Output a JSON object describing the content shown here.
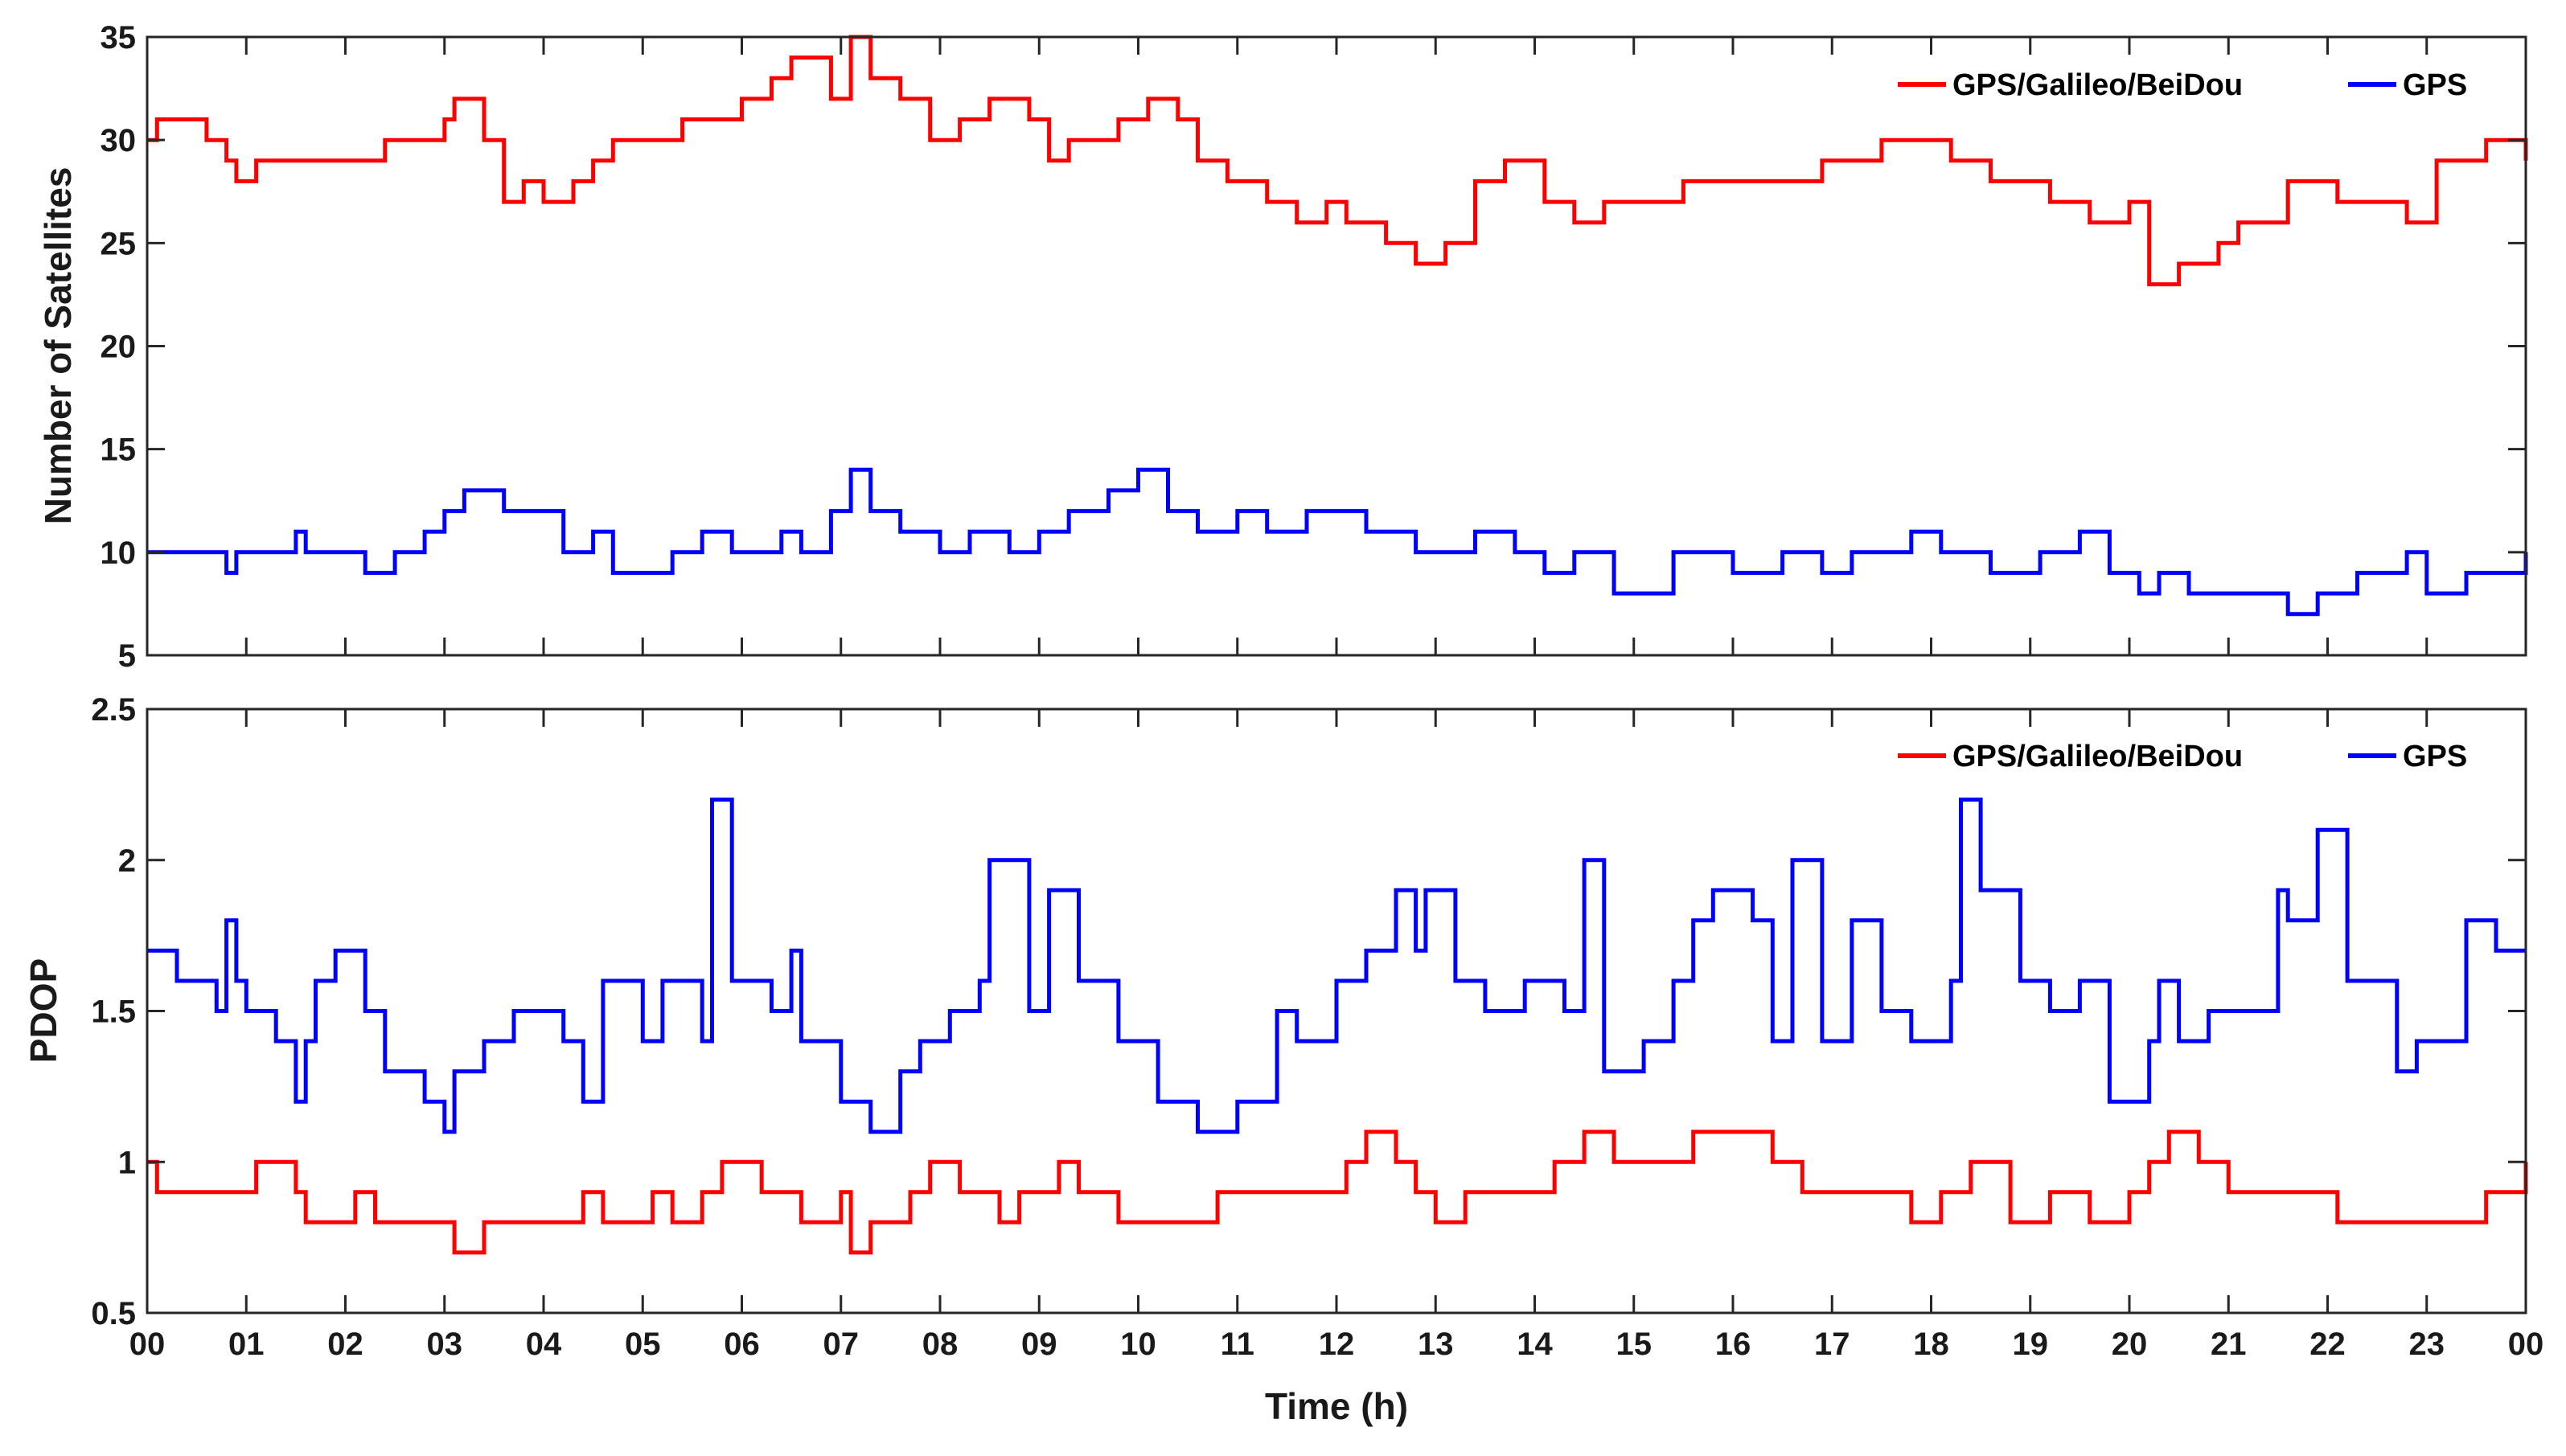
{
  "chart_data": [
    {
      "type": "line",
      "ylabel": "Number of Satellites",
      "xlabel": "",
      "xlim": [
        0,
        24
      ],
      "ylim": [
        5,
        35
      ],
      "yticks": [
        5,
        10,
        15,
        20,
        25,
        30,
        35
      ],
      "legend_position": "top-right",
      "series": [
        {
          "name": "GPS/Galileo/BeiDou",
          "color": "#ff0000",
          "x": [
            0,
            0.1,
            0.6,
            0.8,
            0.9,
            1.1,
            1.5,
            2.2,
            2.4,
            2.6,
            3.0,
            3.1,
            3.4,
            3.6,
            3.8,
            4.0,
            4.3,
            4.5,
            4.7,
            5.2,
            5.4,
            6.0,
            6.3,
            6.5,
            6.9,
            7.1,
            7.3,
            7.6,
            7.9,
            8.2,
            8.5,
            8.9,
            9.1,
            9.3,
            9.8,
            10.1,
            10.4,
            10.6,
            10.9,
            11.3,
            11.6,
            11.9,
            12.1,
            12.5,
            12.8,
            13.1,
            13.4,
            13.7,
            14.1,
            14.4,
            14.7,
            15.5,
            16.6,
            16.9,
            17.5,
            18.2,
            18.6,
            19.2,
            19.6,
            20.0,
            20.2,
            20.5,
            20.9,
            21.1,
            21.6,
            22.1,
            22.8,
            23.1,
            23.6,
            24.0
          ],
          "values": [
            30,
            31,
            30,
            29,
            28,
            29,
            29,
            29,
            30,
            30,
            31,
            32,
            30,
            27,
            28,
            27,
            28,
            29,
            30,
            30,
            31,
            32,
            33,
            34,
            32,
            35,
            33,
            32,
            30,
            31,
            32,
            31,
            29,
            30,
            31,
            32,
            31,
            29,
            28,
            27,
            26,
            27,
            26,
            25,
            24,
            25,
            28,
            29,
            27,
            26,
            27,
            28,
            28,
            29,
            30,
            29,
            28,
            27,
            26,
            27,
            23,
            24,
            25,
            26,
            28,
            27,
            26,
            29,
            30,
            29
          ]
        },
        {
          "name": "GPS",
          "color": "#0000ff",
          "x": [
            0,
            0.8,
            0.9,
            1.5,
            1.6,
            2.2,
            2.5,
            2.8,
            3.0,
            3.2,
            3.6,
            4.2,
            4.5,
            4.7,
            5.3,
            5.6,
            5.9,
            6.4,
            6.6,
            6.9,
            7.1,
            7.3,
            7.6,
            8.0,
            8.3,
            8.7,
            9.0,
            9.3,
            9.7,
            10.0,
            10.3,
            10.6,
            11.0,
            11.3,
            11.7,
            12.3,
            12.8,
            13.4,
            13.8,
            14.1,
            14.4,
            14.8,
            15.4,
            16.0,
            16.5,
            16.9,
            17.2,
            17.8,
            18.1,
            18.6,
            19.1,
            19.5,
            19.8,
            20.1,
            20.3,
            20.6,
            21.0,
            21.6,
            21.9,
            22.3,
            22.8,
            23.0,
            23.4,
            24.0
          ],
          "values": [
            10,
            9,
            10,
            11,
            10,
            9,
            10,
            11,
            12,
            13,
            12,
            10,
            11,
            9,
            10,
            11,
            10,
            11,
            10,
            12,
            14,
            12,
            11,
            10,
            11,
            10,
            11,
            12,
            13,
            14,
            12,
            11,
            12,
            11,
            12,
            11,
            10,
            11,
            10,
            9,
            10,
            8,
            10,
            9,
            10,
            9,
            10,
            11,
            10,
            9,
            10,
            11,
            9,
            8,
            9,
            8,
            8,
            7,
            8,
            9,
            10,
            8,
            9,
            10
          ]
        }
      ]
    },
    {
      "type": "line",
      "ylabel": "PDOP",
      "xlabel": "Time (h)",
      "xlim": [
        0,
        24
      ],
      "ylim": [
        0.5,
        2.5
      ],
      "yticks": [
        "0.5",
        "1",
        "1.5",
        "2",
        "2.5"
      ],
      "xticks": [
        "00",
        "01",
        "02",
        "03",
        "04",
        "05",
        "06",
        "07",
        "08",
        "09",
        "10",
        "11",
        "12",
        "13",
        "14",
        "15",
        "16",
        "17",
        "18",
        "19",
        "20",
        "21",
        "22",
        "23",
        "00"
      ],
      "legend_position": "top-right",
      "series": [
        {
          "name": "GPS/Galileo/BeiDou",
          "color": "#ff0000",
          "x": [
            0,
            0.1,
            0.9,
            1.1,
            1.5,
            1.6,
            2.1,
            2.3,
            2.5,
            3.0,
            3.1,
            3.4,
            4.4,
            4.6,
            5.1,
            5.3,
            5.6,
            5.8,
            6.2,
            6.6,
            7.0,
            7.1,
            7.3,
            7.7,
            7.9,
            8.2,
            8.6,
            8.8,
            9.2,
            9.4,
            9.8,
            10.2,
            10.5,
            10.8,
            11.2,
            11.8,
            12.1,
            12.3,
            12.6,
            12.8,
            13.0,
            13.3,
            13.8,
            14.2,
            14.5,
            14.8,
            15.3,
            15.6,
            16.2,
            16.4,
            16.7,
            17.2,
            17.8,
            18.1,
            18.4,
            18.8,
            19.2,
            19.6,
            20.0,
            20.2,
            20.4,
            20.7,
            21.0,
            21.5,
            21.8,
            22.1,
            22.6,
            22.9,
            23.3,
            23.6,
            24.0
          ],
          "values": [
            1.0,
            0.9,
            0.9,
            1.0,
            0.9,
            0.8,
            0.9,
            0.8,
            0.8,
            0.8,
            0.7,
            0.8,
            0.9,
            0.8,
            0.9,
            0.8,
            0.9,
            1.0,
            0.9,
            0.8,
            0.9,
            0.7,
            0.8,
            0.9,
            1.0,
            0.9,
            0.8,
            0.9,
            1.0,
            0.9,
            0.8,
            0.8,
            0.8,
            0.9,
            0.9,
            0.9,
            1.0,
            1.1,
            1.0,
            0.9,
            0.8,
            0.9,
            0.9,
            1.0,
            1.1,
            1.0,
            1.0,
            1.1,
            1.1,
            1.0,
            0.9,
            0.9,
            0.8,
            0.9,
            1.0,
            0.8,
            0.9,
            0.8,
            0.9,
            1.0,
            1.1,
            1.0,
            0.9,
            0.9,
            0.9,
            0.8,
            0.8,
            0.8,
            0.8,
            0.9,
            1.0
          ]
        },
        {
          "name": "GPS",
          "color": "#0000ff",
          "x": [
            0,
            0.3,
            0.7,
            0.8,
            0.9,
            1.0,
            1.3,
            1.5,
            1.6,
            1.7,
            1.9,
            2.2,
            2.4,
            2.8,
            3.0,
            3.1,
            3.4,
            3.7,
            4.0,
            4.2,
            4.4,
            4.6,
            5.0,
            5.2,
            5.6,
            5.7,
            5.9,
            6.3,
            6.5,
            6.6,
            7.0,
            7.3,
            7.6,
            7.8,
            8.1,
            8.4,
            8.5,
            8.9,
            9.1,
            9.4,
            9.8,
            10.2,
            10.6,
            11.0,
            11.4,
            11.6,
            12.0,
            12.3,
            12.6,
            12.8,
            12.9,
            13.2,
            13.5,
            13.9,
            14.3,
            14.5,
            14.7,
            15.1,
            15.4,
            15.6,
            15.8,
            16.2,
            16.4,
            16.6,
            16.9,
            17.2,
            17.5,
            17.8,
            18.2,
            18.3,
            18.5,
            18.9,
            19.2,
            19.5,
            19.8,
            20.2,
            20.3,
            20.5,
            20.8,
            21.5,
            21.6,
            21.9,
            22.2,
            22.7,
            22.9,
            23.4,
            23.7,
            24.0
          ],
          "values": [
            1.7,
            1.6,
            1.5,
            1.8,
            1.6,
            1.5,
            1.4,
            1.2,
            1.4,
            1.6,
            1.7,
            1.5,
            1.3,
            1.2,
            1.1,
            1.3,
            1.4,
            1.5,
            1.5,
            1.4,
            1.2,
            1.6,
            1.4,
            1.6,
            1.4,
            2.2,
            1.6,
            1.5,
            1.7,
            1.4,
            1.2,
            1.1,
            1.3,
            1.4,
            1.5,
            1.6,
            2.0,
            1.5,
            1.9,
            1.6,
            1.4,
            1.2,
            1.1,
            1.2,
            1.5,
            1.4,
            1.6,
            1.7,
            1.9,
            1.7,
            1.9,
            1.6,
            1.5,
            1.6,
            1.5,
            2.0,
            1.3,
            1.4,
            1.6,
            1.8,
            1.9,
            1.8,
            1.4,
            2.0,
            1.4,
            1.8,
            1.5,
            1.4,
            1.6,
            2.2,
            1.9,
            1.6,
            1.5,
            1.6,
            1.2,
            1.4,
            1.6,
            1.4,
            1.5,
            1.9,
            1.8,
            2.1,
            1.6,
            1.3,
            1.4,
            1.8,
            1.7,
            1.7
          ]
        }
      ]
    }
  ]
}
